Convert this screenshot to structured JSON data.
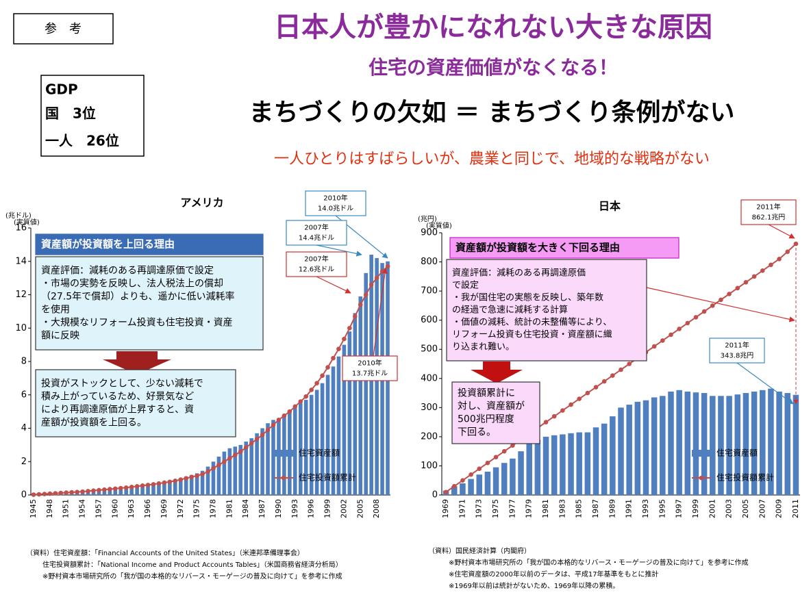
{
  "badge": "参　考",
  "title": "日本人が豊かになれない大きな原因",
  "subtitle": "住宅の資産価値がなくなる！",
  "gdp": [
    "GDP",
    "国　3位",
    "一人　26位"
  ],
  "headline": "まちづくりの欠如 ＝ まちづくり条例がない",
  "tagline": "一人ひとりはすばらしいが、農業と同じで、地域的な戦略がない",
  "chart_data": [
    {
      "type": "combo",
      "title": "アメリカ",
      "y_unit": "(兆ドル)",
      "y_note": "(実質値)",
      "categories": [
        "1945",
        null,
        null,
        "1948",
        null,
        null,
        "1951",
        null,
        null,
        "1954",
        null,
        null,
        "1957",
        null,
        null,
        "1960",
        null,
        null,
        "1963",
        null,
        null,
        "1966",
        null,
        null,
        "1969",
        null,
        null,
        "1972",
        null,
        null,
        "1975",
        null,
        null,
        "1978",
        null,
        null,
        "1981",
        null,
        null,
        "1984",
        null,
        null,
        "1987",
        null,
        null,
        "1990",
        null,
        null,
        "1993",
        null,
        null,
        "1996",
        null,
        null,
        "1999",
        null,
        null,
        "2002",
        null,
        null,
        "2005",
        null,
        null,
        "2008",
        null,
        null
      ],
      "series": [
        {
          "name": "住宅資産額",
          "color": "#4f7fbf",
          "kind": "bar",
          "values": [
            0.1,
            0.12,
            0.14,
            0.16,
            0.18,
            0.2,
            0.22,
            0.24,
            0.26,
            0.28,
            0.3,
            0.32,
            0.34,
            0.36,
            0.38,
            0.4,
            0.43,
            0.46,
            0.5,
            0.54,
            0.58,
            0.62,
            0.66,
            0.72,
            0.78,
            0.84,
            0.92,
            1.0,
            1.1,
            1.2,
            1.3,
            1.45,
            1.7,
            2.0,
            2.3,
            2.6,
            2.8,
            2.9,
            3.0,
            3.2,
            3.4,
            3.7,
            4.0,
            4.3,
            4.5,
            4.6,
            4.8,
            5.0,
            5.2,
            5.5,
            5.7,
            6.0,
            6.3,
            6.7,
            7.2,
            7.7,
            8.3,
            9.0,
            9.8,
            10.9,
            11.9,
            13.3,
            14.4,
            14.2,
            13.9,
            14.0
          ]
        },
        {
          "name": "住宅投資額累計",
          "color": "#c0504d",
          "kind": "line",
          "values": [
            0.02,
            0.04,
            0.06,
            0.08,
            0.1,
            0.12,
            0.14,
            0.16,
            0.18,
            0.2,
            0.23,
            0.26,
            0.29,
            0.32,
            0.35,
            0.38,
            0.41,
            0.44,
            0.48,
            0.52,
            0.56,
            0.6,
            0.64,
            0.69,
            0.74,
            0.79,
            0.85,
            0.92,
            1.0,
            1.08,
            1.15,
            1.25,
            1.4,
            1.6,
            1.8,
            2.0,
            2.2,
            2.4,
            2.6,
            2.85,
            3.1,
            3.35,
            3.6,
            3.9,
            4.2,
            4.5,
            4.75,
            5.0,
            5.3,
            5.6,
            5.9,
            6.3,
            6.7,
            7.15,
            7.65,
            8.2,
            8.75,
            9.35,
            10.0,
            10.7,
            11.4,
            12.0,
            12.6,
            13.0,
            13.4,
            13.7
          ]
        }
      ],
      "ylim": [
        0,
        16
      ],
      "yticks": [
        0,
        2,
        4,
        6,
        8,
        10,
        12,
        14,
        16
      ],
      "annotations": [
        {
          "lines": [
            "資産額が投資額を上回る理由"
          ]
        },
        {
          "lines": [
            "資産評価：減耗のある再調達原価で設定",
            "・市場の実勢を反映し、法人税法上の償却",
            "（27.5年で償却）よりも、遥かに低い減耗率",
            "を使用",
            "・大規模なリフォーム投資も住宅投資・資産",
            "額に反映"
          ]
        },
        {
          "lines": [
            "投資がストックとして、少ない減耗で",
            "積み上がっているため、好景気など",
            "により再調達原価が上昇すると、資",
            "産額が投資額を上回る。"
          ]
        },
        {
          "lines": [
            "2010年",
            "14.0兆ドル"
          ]
        },
        {
          "lines": [
            "2007年",
            "14.4兆ドル"
          ]
        },
        {
          "lines": [
            "2007年",
            "12.6兆ドル"
          ]
        },
        {
          "lines": [
            "2010年",
            "13.7兆ドル"
          ]
        }
      ],
      "source": [
        "（資料）住宅資産額：「Financial Accounts of the United States」（米連邦準備理事会）",
        "住宅投資額累計：「National Income and Product Accounts Tables」（米国商務省経済分析局）",
        "※野村資本市場研究所の「我が国の本格的なリバース・モーゲージの普及に向けて」を参考に作成"
      ]
    },
    {
      "type": "combo",
      "title": "日本",
      "y_unit": "(兆円)",
      "y_note": "(実質値)",
      "categories": [
        "1969",
        null,
        "1971",
        null,
        "1973",
        null,
        "1975",
        null,
        "1977",
        null,
        "1979",
        null,
        "1981",
        null,
        "1983",
        null,
        "1985",
        null,
        "1987",
        null,
        "1989",
        null,
        "1991",
        null,
        "1993",
        null,
        "1995",
        null,
        "1997",
        null,
        "1999",
        null,
        "2001",
        null,
        "2003",
        null,
        "2005",
        null,
        "2007",
        null,
        "2009",
        null,
        "2011"
      ],
      "series": [
        {
          "name": "住宅資産額",
          "color": "#4f7fbf",
          "kind": "bar",
          "values": [
            15,
            30,
            40,
            55,
            70,
            80,
            95,
            110,
            125,
            150,
            175,
            190,
            200,
            205,
            208,
            212,
            215,
            215,
            232,
            245,
            270,
            300,
            310,
            320,
            325,
            335,
            340,
            355,
            360,
            355,
            352,
            350,
            340,
            340,
            340,
            345,
            350,
            355,
            360,
            365,
            355,
            350,
            343.8
          ]
        },
        {
          "name": "住宅投資額累計",
          "color": "#c0504d",
          "kind": "line",
          "values": [
            10,
            30,
            50,
            70,
            90,
            110,
            130,
            150,
            170,
            190,
            210,
            230,
            250,
            270,
            290,
            310,
            330,
            350,
            370,
            390,
            410,
            430,
            450,
            470,
            490,
            510,
            530,
            550,
            570,
            590,
            610,
            630,
            650,
            670,
            690,
            710,
            730,
            750,
            770,
            790,
            810,
            835,
            862.1
          ]
        }
      ],
      "ylim": [
        0,
        900
      ],
      "yticks": [
        0,
        100,
        200,
        300,
        400,
        500,
        600,
        700,
        800,
        900
      ],
      "annotations": [
        {
          "lines": [
            "資産額が投資額を大きく下回る理由"
          ]
        },
        {
          "lines": [
            "資産評価：減耗のある再調達原価",
            "で設定",
            "・我が国住宅の実態を反映し、築年数",
            "の経過で急速に減耗する計算",
            "・価値の減耗、統計の未整備等により、",
            "リフォーム投資も住宅投資・資産額に織",
            "り込まれ難い。"
          ]
        },
        {
          "lines": [
            "投資額累計に",
            "対し、資産額が",
            "500兆円程度",
            "下回る。"
          ]
        },
        {
          "lines": [
            "2011年",
            "862.1兆円"
          ]
        },
        {
          "lines": [
            "2011年",
            "343.8兆円"
          ]
        }
      ],
      "source": [
        "（資料）国民経済計算（内閣府）",
        "※野村資本市場研究所の「我が国の本格的なリバース・モーゲージの普及に向けて」を参考に作成",
        "※住宅資産額の2000年以前のデータは、平成17年基準をもとに推計",
        "※1969年以前は統計がないため、1969年以降の累積。"
      ]
    }
  ]
}
